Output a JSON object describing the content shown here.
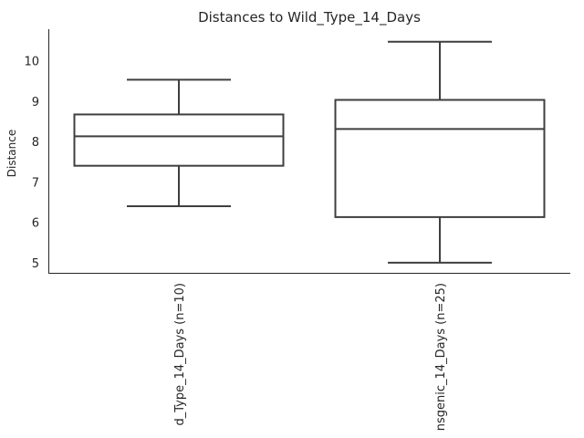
{
  "chart_data": {
    "type": "box",
    "title": "Distances to Wild_Type_14_Days",
    "xlabel": "",
    "ylabel": "Distance",
    "ylim": [
      4.75,
      10.78
    ],
    "yticks": [
      5,
      6,
      7,
      8,
      9,
      10
    ],
    "grid": false,
    "categories": [
      "d_Type_14_Days (n=10)",
      "nsgenic_14_Days (n=25)"
    ],
    "boxes": [
      {
        "whisker_low": 6.4,
        "q1": 7.4,
        "median": 8.13,
        "q3": 8.67,
        "whisker_high": 9.53
      },
      {
        "whisker_low": 5.0,
        "q1": 6.13,
        "median": 8.31,
        "q3": 9.03,
        "whisker_high": 10.47
      }
    ],
    "colors": {
      "line": "#3f3f3f",
      "axis": "#262626",
      "text": "#262626"
    }
  }
}
